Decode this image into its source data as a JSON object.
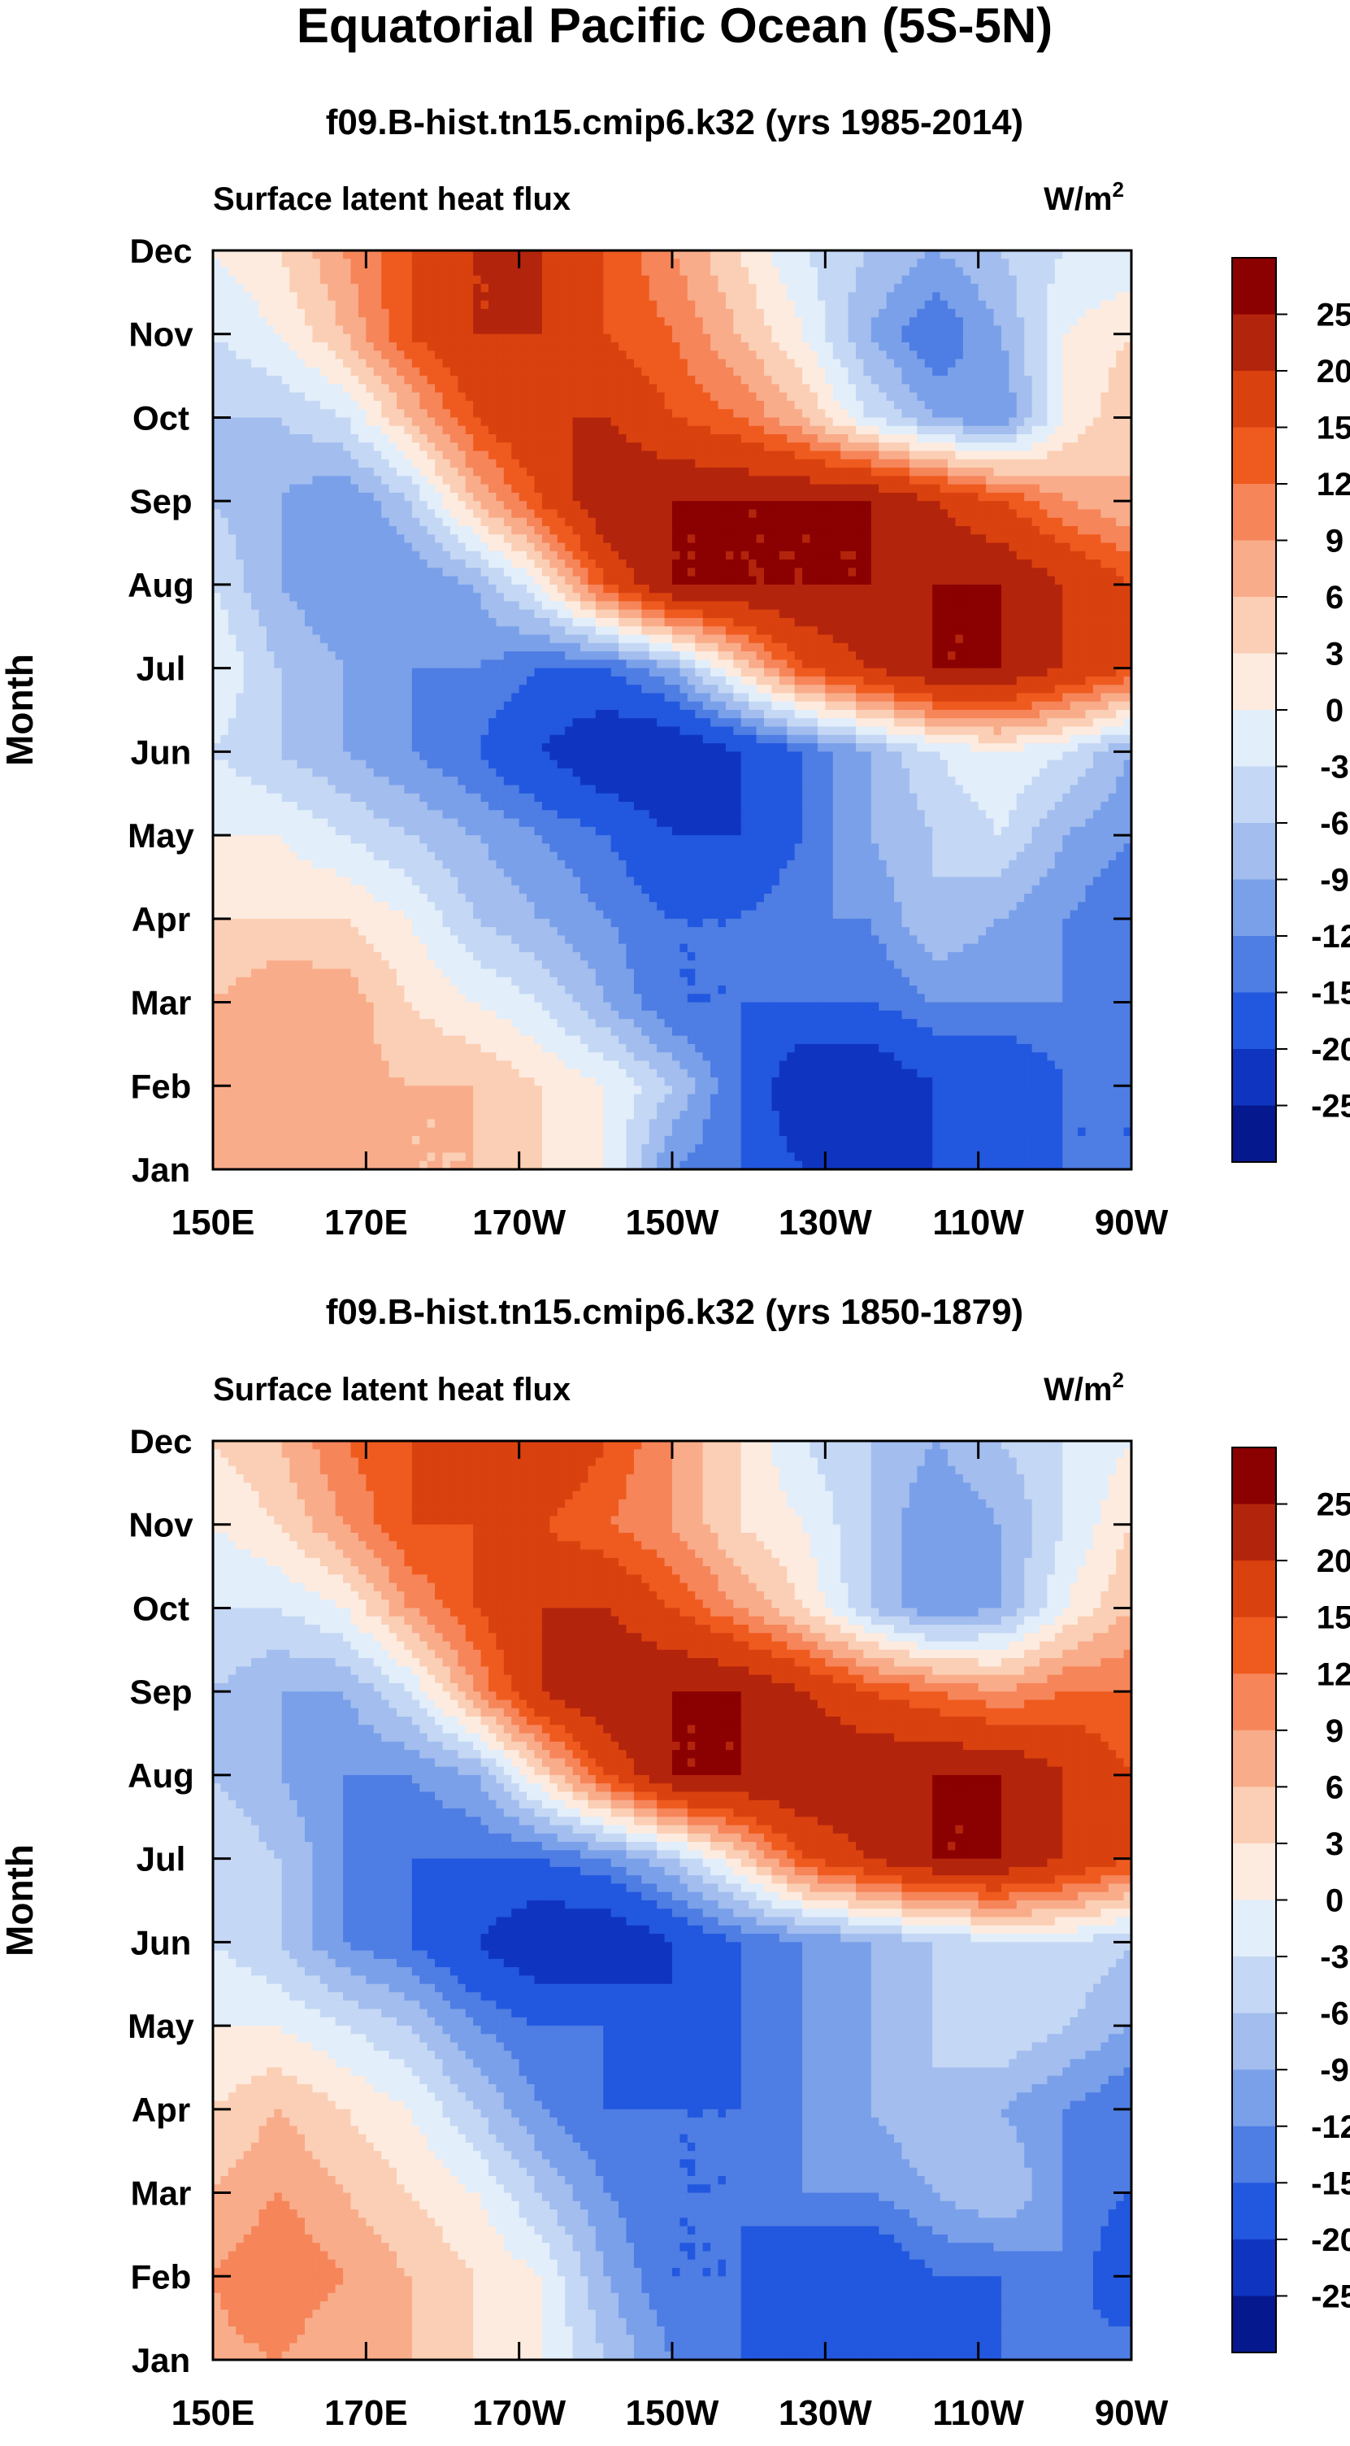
{
  "figure": {
    "title": "Equatorial Pacific Ocean (5S-5N)"
  },
  "colorbar": {
    "levels": [
      "25",
      "20",
      "15",
      "12",
      "9",
      "6",
      "3",
      "0",
      "-3",
      "-6",
      "-9",
      "-12",
      "-15",
      "-20",
      "-25"
    ],
    "colors": [
      "#8b0000",
      "#b3240c",
      "#d9410f",
      "#ef5b1f",
      "#f6855a",
      "#f9ac8a",
      "#fbcfb5",
      "#fdebe0",
      "#e2eefa",
      "#c4d7f4",
      "#a2bdee",
      "#7aa0ea",
      "#4e7de3",
      "#2257df",
      "#0f35c0",
      "#06188e"
    ],
    "extend": "both"
  },
  "chart_data": [
    {
      "type": "heatmap",
      "title": "f09.B-hist.tn15.cmip6.k32 (yrs 1985-2014)",
      "left_label": "Surface latent heat flux",
      "units_base": "W/m",
      "units_sup": "2",
      "ylabel": "Month",
      "y_ticks": [
        "Dec",
        "Nov",
        "Oct",
        "Sep",
        "Aug",
        "Jul",
        "Jun",
        "May",
        "Apr",
        "Mar",
        "Feb",
        "Jan"
      ],
      "x_ticks": [
        "150E",
        "170E",
        "170W",
        "150W",
        "130W",
        "110W",
        "90W"
      ],
      "x_range": [
        150,
        270
      ],
      "y_range": [
        "Jan",
        "Dec"
      ],
      "grid": [
        [
          7,
          9,
          7,
          6,
          6,
          3,
          0,
          -12,
          -15,
          -20,
          -20,
          -20,
          -20,
          -15,
          -15
        ],
        [
          8,
          9,
          7,
          6,
          6,
          3,
          0,
          -6,
          -15,
          -25,
          -25,
          -20,
          -20,
          -15,
          -15
        ],
        [
          6,
          9,
          8,
          3,
          0,
          -3,
          -9,
          -15,
          -15,
          -15,
          -15,
          -12,
          -12,
          -12,
          -12
        ],
        [
          3,
          3,
          3,
          0,
          -6,
          -9,
          -12,
          -15,
          -15,
          -12,
          -12,
          -6,
          -9,
          -12,
          -15
        ],
        [
          0,
          0,
          -3,
          -6,
          -9,
          -12,
          -15,
          -20,
          -20,
          -15,
          -9,
          -6,
          -3,
          -9,
          -12
        ],
        [
          -3,
          -6,
          -9,
          -12,
          -15,
          -20,
          -25,
          -25,
          -20,
          -15,
          -9,
          -3,
          0,
          -3,
          -9
        ],
        [
          0,
          -6,
          -9,
          -12,
          -12,
          -15,
          -15,
          -9,
          3,
          15,
          20,
          25,
          25,
          20,
          15
        ],
        [
          -3,
          -9,
          -12,
          -12,
          -9,
          0,
          15,
          25,
          25,
          25,
          25,
          25,
          25,
          20,
          15
        ],
        [
          -6,
          -9,
          -12,
          -6,
          6,
          15,
          25,
          25,
          25,
          25,
          25,
          20,
          15,
          9,
          6
        ],
        [
          -6,
          -6,
          -3,
          6,
          15,
          20,
          20,
          15,
          12,
          6,
          -3,
          -9,
          -12,
          0,
          6
        ],
        [
          -3,
          0,
          6,
          15,
          20,
          20,
          15,
          12,
          6,
          0,
          -9,
          -15,
          -9,
          0,
          3
        ],
        [
          0,
          3,
          9,
          15,
          20,
          20,
          15,
          9,
          3,
          -3,
          -6,
          -9,
          -6,
          -3,
          -3
        ]
      ]
    },
    {
      "type": "heatmap",
      "title": "f09.B-hist.tn15.cmip6.k32 (yrs 1850-1879)",
      "left_label": "Surface latent heat flux",
      "units_base": "W/m",
      "units_sup": "2",
      "ylabel": "Month",
      "y_ticks": [
        "Dec",
        "Nov",
        "Oct",
        "Sep",
        "Aug",
        "Jul",
        "Jun",
        "May",
        "Apr",
        "Mar",
        "Feb",
        "Jan"
      ],
      "x_ticks": [
        "150E",
        "170E",
        "170W",
        "150W",
        "130W",
        "110W",
        "90W"
      ],
      "x_range": [
        150,
        270
      ],
      "y_range": [
        "Jan",
        "Dec"
      ],
      "grid": [
        [
          8,
          9,
          6,
          6,
          3,
          0,
          -6,
          -12,
          -15,
          -20,
          -20,
          -20,
          -15,
          -15,
          -12
        ],
        [
          9,
          12,
          9,
          6,
          3,
          0,
          -9,
          -15,
          -15,
          -20,
          -20,
          -15,
          -15,
          -12,
          -20
        ],
        [
          6,
          9,
          6,
          3,
          0,
          -6,
          -12,
          -15,
          -15,
          -12,
          -12,
          -9,
          -6,
          -12,
          -15
        ],
        [
          3,
          6,
          3,
          0,
          -6,
          -12,
          -15,
          -15,
          -15,
          -12,
          -9,
          -6,
          -9,
          -12,
          -15
        ],
        [
          0,
          0,
          -3,
          -6,
          -12,
          -15,
          -15,
          -20,
          -15,
          -12,
          -9,
          -6,
          -3,
          -6,
          -9
        ],
        [
          -3,
          -6,
          -12,
          -15,
          -20,
          -25,
          -25,
          -20,
          -15,
          -12,
          -9,
          -6,
          -3,
          -3,
          -6
        ],
        [
          -3,
          -6,
          -12,
          -15,
          -15,
          -15,
          -12,
          -6,
          3,
          15,
          20,
          25,
          25,
          20,
          15
        ],
        [
          -6,
          -9,
          -12,
          -12,
          -9,
          3,
          15,
          25,
          25,
          25,
          25,
          25,
          25,
          20,
          15
        ],
        [
          -6,
          -9,
          -9,
          -3,
          9,
          20,
          25,
          25,
          25,
          20,
          15,
          12,
          9,
          12,
          12
        ],
        [
          -3,
          -3,
          0,
          9,
          15,
          20,
          20,
          15,
          9,
          3,
          -6,
          -12,
          -9,
          0,
          6
        ],
        [
          0,
          3,
          9,
          15,
          15,
          15,
          12,
          9,
          3,
          0,
          -6,
          -12,
          -9,
          -3,
          3
        ],
        [
          3,
          6,
          12,
          15,
          20,
          20,
          15,
          9,
          3,
          -3,
          -6,
          -9,
          -6,
          -3,
          0
        ]
      ]
    }
  ]
}
